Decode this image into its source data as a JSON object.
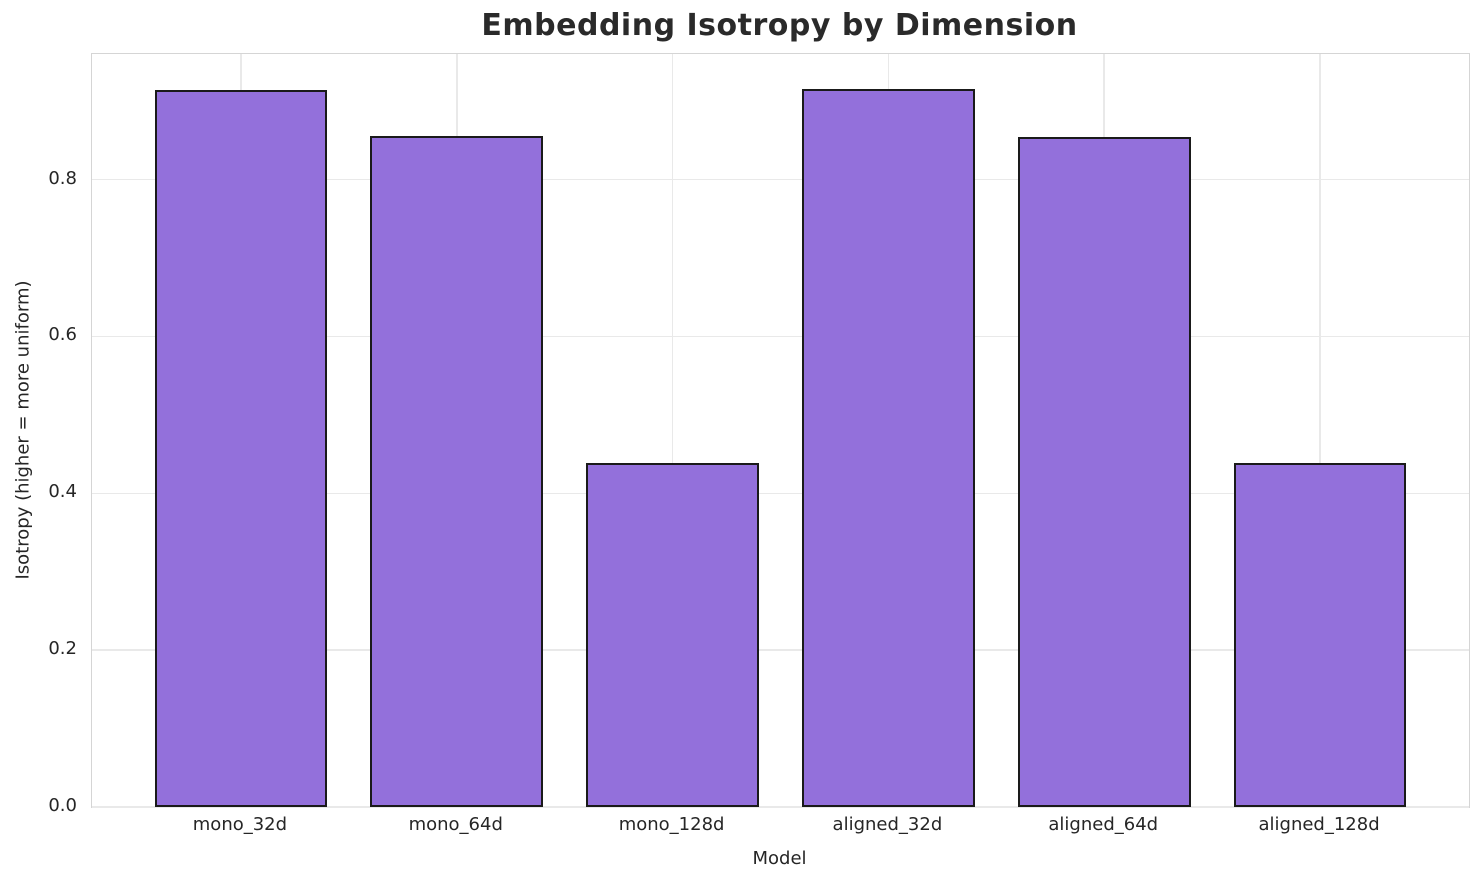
{
  "chart_data": {
    "type": "bar",
    "title": "Embedding Isotropy by Dimension",
    "xlabel": "Model",
    "ylabel": "Isotropy (higher = more uniform)",
    "categories": [
      "mono_32d",
      "mono_64d",
      "mono_128d",
      "aligned_32d",
      "aligned_64d",
      "aligned_128d"
    ],
    "values": [
      0.914,
      0.855,
      0.438,
      0.915,
      0.854,
      0.438
    ],
    "ylim": [
      0,
      0.96
    ],
    "yticks": [
      0.0,
      0.2,
      0.4,
      0.6,
      0.8
    ],
    "ytick_labels": [
      "0.0",
      "0.2",
      "0.4",
      "0.6",
      "0.8"
    ],
    "grid": true,
    "legend": "none",
    "bar_color": "#9370DB",
    "bar_edge_color": "#1a1a1a",
    "grid_color": "#e9e9e9",
    "spine_color": "#d5d5d5",
    "text_color": "#262626",
    "title_color": "#2a2a2a",
    "background_color": "#ffffff"
  }
}
